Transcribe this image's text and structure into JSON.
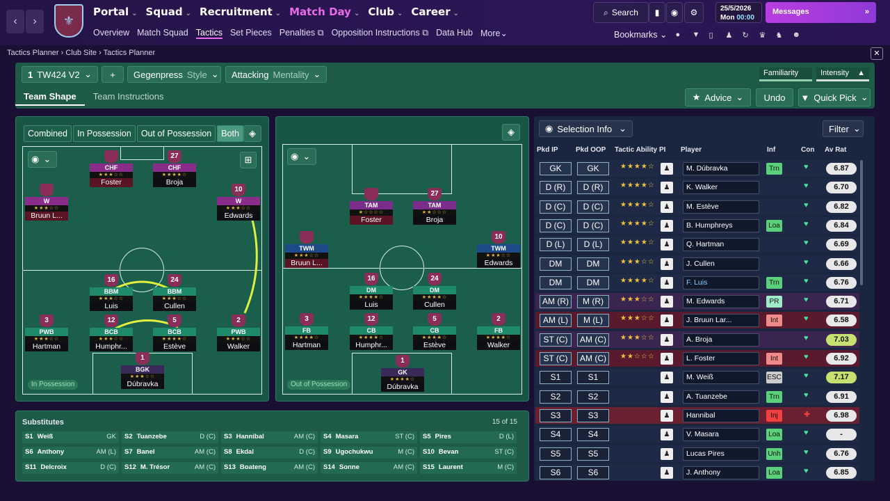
{
  "nav": {
    "main": [
      "Portal",
      "Squad",
      "Recruitment",
      "Match Day",
      "Club",
      "Career"
    ],
    "active_main": "Match Day",
    "sub": [
      "Overview",
      "Match Squad",
      "Tactics",
      "Set Pieces",
      "Penalties",
      "Opposition Instructions",
      "Data Hub",
      "More"
    ],
    "active_sub": "Tactics",
    "search": "Search",
    "date": "25/5/2026",
    "day": "Mon",
    "time": "00:00",
    "messages": "Messages",
    "bookmarks": "Bookmarks"
  },
  "breadcrumb": [
    "Tactics Planner",
    "Club Site",
    "Tactics Planner"
  ],
  "planner": {
    "tactic": "TW424 V2",
    "tactic_num": "1",
    "style": "Gegenpress",
    "style_label": "Style",
    "mentality": "Attacking",
    "mentality_label": "Mentality",
    "familiarity": "Familiarity",
    "intensity": "Intensity",
    "tabs": [
      "Team Shape",
      "Team Instructions"
    ],
    "advice": "Advice",
    "undo": "Undo",
    "quick_pick": "Quick Pick",
    "modes": [
      "Combined",
      "In Possession",
      "Out of Possession",
      "Both"
    ],
    "ip_tag": "In Possession",
    "oop_tag": "Out of Possession"
  },
  "ip_players": [
    {
      "num": "",
      "role": "CHF",
      "stars": "★★★☆☆",
      "name": "Foster"
    },
    {
      "num": "27",
      "role": "CHF",
      "stars": "★★★★☆",
      "name": "Broja"
    },
    {
      "num": "",
      "role": "W",
      "stars": "★★★☆☆",
      "name": "Bruun L..."
    },
    {
      "num": "10",
      "role": "W",
      "stars": "★★★☆☆",
      "name": "Edwards"
    },
    {
      "num": "16",
      "role": "BBM",
      "stars": "★★★☆☆",
      "name": "Luis"
    },
    {
      "num": "24",
      "role": "BBM",
      "stars": "★★★☆☆",
      "name": "Cullen"
    },
    {
      "num": "3",
      "role": "PWB",
      "stars": "★★★☆☆",
      "name": "Hartman"
    },
    {
      "num": "12",
      "role": "BCB",
      "stars": "★★★☆☆",
      "name": "Humphr..."
    },
    {
      "num": "5",
      "role": "BCB",
      "stars": "★★★★☆",
      "name": "Estève"
    },
    {
      "num": "2",
      "role": "PWB",
      "stars": "★★★☆☆",
      "name": "Walker"
    },
    {
      "num": "1",
      "role": "BGK",
      "stars": "★★★☆☆",
      "name": "Dúbravka"
    }
  ],
  "oop_players": [
    {
      "num": "",
      "role": "TAM",
      "stars": "★☆☆☆☆",
      "name": "Foster"
    },
    {
      "num": "27",
      "role": "TAM",
      "stars": "★★☆☆☆",
      "name": "Broja"
    },
    {
      "num": "",
      "role": "TWM",
      "stars": "★★★☆☆",
      "name": "Bruun L..."
    },
    {
      "num": "10",
      "role": "TWM",
      "stars": "★★★☆☆",
      "name": "Edwards"
    },
    {
      "num": "16",
      "role": "DM",
      "stars": "★★★★☆",
      "name": "Luis"
    },
    {
      "num": "24",
      "role": "DM",
      "stars": "★★★★☆",
      "name": "Cullen"
    },
    {
      "num": "3",
      "role": "FB",
      "stars": "★★★★☆",
      "name": "Hartman"
    },
    {
      "num": "12",
      "role": "CB",
      "stars": "★★★★☆",
      "name": "Humphr..."
    },
    {
      "num": "5",
      "role": "CB",
      "stars": "★★★★☆",
      "name": "Estève"
    },
    {
      "num": "2",
      "role": "FB",
      "stars": "★★★★☆",
      "name": "Walker"
    },
    {
      "num": "1",
      "role": "GK",
      "stars": "★★★★☆",
      "name": "Dúbravka"
    }
  ],
  "subs": {
    "title": "Substitutes",
    "count": "15 of 15",
    "items": [
      {
        "s": "S1",
        "n": "Weiß",
        "p": "GK"
      },
      {
        "s": "S2",
        "n": "Tuanzebe",
        "p": "D (C)"
      },
      {
        "s": "S3",
        "n": "Hannibal",
        "p": "AM (C)"
      },
      {
        "s": "S4",
        "n": "Masara",
        "p": "ST (C)"
      },
      {
        "s": "S5",
        "n": "Pires",
        "p": "D (L)"
      },
      {
        "s": "S6",
        "n": "Anthony",
        "p": "AM (L)"
      },
      {
        "s": "S7",
        "n": "Banel",
        "p": "AM (C)"
      },
      {
        "s": "S8",
        "n": "Ekdal",
        "p": "D (C)"
      },
      {
        "s": "S9",
        "n": "Ugochukwu",
        "p": "M (C)"
      },
      {
        "s": "S10",
        "n": "Bevan",
        "p": "ST (C)"
      },
      {
        "s": "S11",
        "n": "Delcroix",
        "p": "D (C)"
      },
      {
        "s": "S12",
        "n": "M. Trésor",
        "p": "AM (C)"
      },
      {
        "s": "S13",
        "n": "Boateng",
        "p": "AM (C)"
      },
      {
        "s": "S14",
        "n": "Sonne",
        "p": "AM (C)"
      },
      {
        "s": "S15",
        "n": "Laurent",
        "p": "M (C)"
      }
    ]
  },
  "selection": {
    "title": "Selection Info",
    "filter": "Filter",
    "headers": [
      "Pkd IP",
      "Pkd OOP",
      "Tactic Ability",
      "PI",
      "Player",
      "Inf",
      "Con",
      "Av Rat"
    ],
    "rows": [
      {
        "ip": "GK",
        "oop": "GK",
        "stars": "★★★★☆",
        "player": "M. Dúbravka",
        "inf": "Trn",
        "infc": "#5ad07a",
        "rat": "6.87",
        "ratc": "#e8e8ea"
      },
      {
        "ip": "D (R)",
        "oop": "D (R)",
        "stars": "★★★★☆",
        "player": "K. Walker",
        "inf": "",
        "infc": "",
        "rat": "6.70",
        "ratc": "#e8e8ea"
      },
      {
        "ip": "D (C)",
        "oop": "D (C)",
        "stars": "★★★★☆",
        "player": "M. Estève",
        "inf": "",
        "infc": "",
        "rat": "6.82",
        "ratc": "#e8e8ea"
      },
      {
        "ip": "D (C)",
        "oop": "D (C)",
        "stars": "★★★★☆",
        "player": "B. Humphreys",
        "inf": "Loa",
        "infc": "#5ad07a",
        "rat": "6.84",
        "ratc": "#e8e8ea"
      },
      {
        "ip": "D (L)",
        "oop": "D (L)",
        "stars": "★★★★☆",
        "player": "Q. Hartman",
        "inf": "",
        "infc": "",
        "rat": "6.69",
        "ratc": "#e8e8ea"
      },
      {
        "ip": "DM",
        "oop": "DM",
        "stars": "★★★☆☆",
        "player": "J. Cullen",
        "inf": "",
        "infc": "",
        "rat": "6.66",
        "ratc": "#e8e8ea"
      },
      {
        "ip": "DM",
        "oop": "DM",
        "stars": "★★★★☆",
        "player": "F. Luis",
        "inf": "Trn",
        "infc": "#5ad07a",
        "rat": "6.76",
        "ratc": "#e8e8ea"
      },
      {
        "ip": "AM (R)",
        "oop": "M (R)",
        "stars": "★★★☆☆",
        "player": "M. Edwards",
        "inf": "PR",
        "infc": "#9fe8c8",
        "rat": "6.71",
        "ratc": "#e8e8ea"
      },
      {
        "ip": "AM (L)",
        "oop": "M (L)",
        "stars": "★★★☆☆",
        "player": "J. Bruun Lar...",
        "inf": "Int",
        "infc": "#f08a8a",
        "rat": "6.58",
        "ratc": "#e8e8ea"
      },
      {
        "ip": "ST (C)",
        "oop": "AM (C)",
        "stars": "★★★☆☆",
        "player": "A. Broja",
        "inf": "",
        "infc": "",
        "rat": "7.03",
        "ratc": "#c8e070"
      },
      {
        "ip": "ST (C)",
        "oop": "AM (C)",
        "stars": "★★☆☆☆",
        "player": "L. Foster",
        "inf": "Int",
        "infc": "#f08a8a",
        "rat": "6.92",
        "ratc": "#e8e8ea"
      },
      {
        "ip": "S1",
        "oop": "S1",
        "stars": "",
        "player": "M. Weiß",
        "inf": "ESC",
        "infc": "#cccccc",
        "rat": "7.17",
        "ratc": "#c8e070"
      },
      {
        "ip": "S2",
        "oop": "S2",
        "stars": "",
        "player": "A. Tuanzebe",
        "inf": "Trn",
        "infc": "#5ad07a",
        "rat": "6.91",
        "ratc": "#e8e8ea"
      },
      {
        "ip": "S3",
        "oop": "S3",
        "stars": "",
        "player": "Hannibal",
        "inf": "Inj",
        "infc": "#f04040",
        "rat": "6.98",
        "ratc": "#e8e8ea"
      },
      {
        "ip": "S4",
        "oop": "S4",
        "stars": "",
        "player": "V. Masara",
        "inf": "Loa",
        "infc": "#5ad07a",
        "rat": "-",
        "ratc": "#e8e8ea"
      },
      {
        "ip": "S5",
        "oop": "S5",
        "stars": "",
        "player": "Lucas Pires",
        "inf": "Unh",
        "infc": "#5ad07a",
        "rat": "6.76",
        "ratc": "#e8e8ea"
      },
      {
        "ip": "S6",
        "oop": "S6",
        "stars": "",
        "player": "J. Anthony",
        "inf": "Loa",
        "infc": "#5ad07a",
        "rat": "6.85",
        "ratc": "#e8e8ea"
      }
    ]
  }
}
